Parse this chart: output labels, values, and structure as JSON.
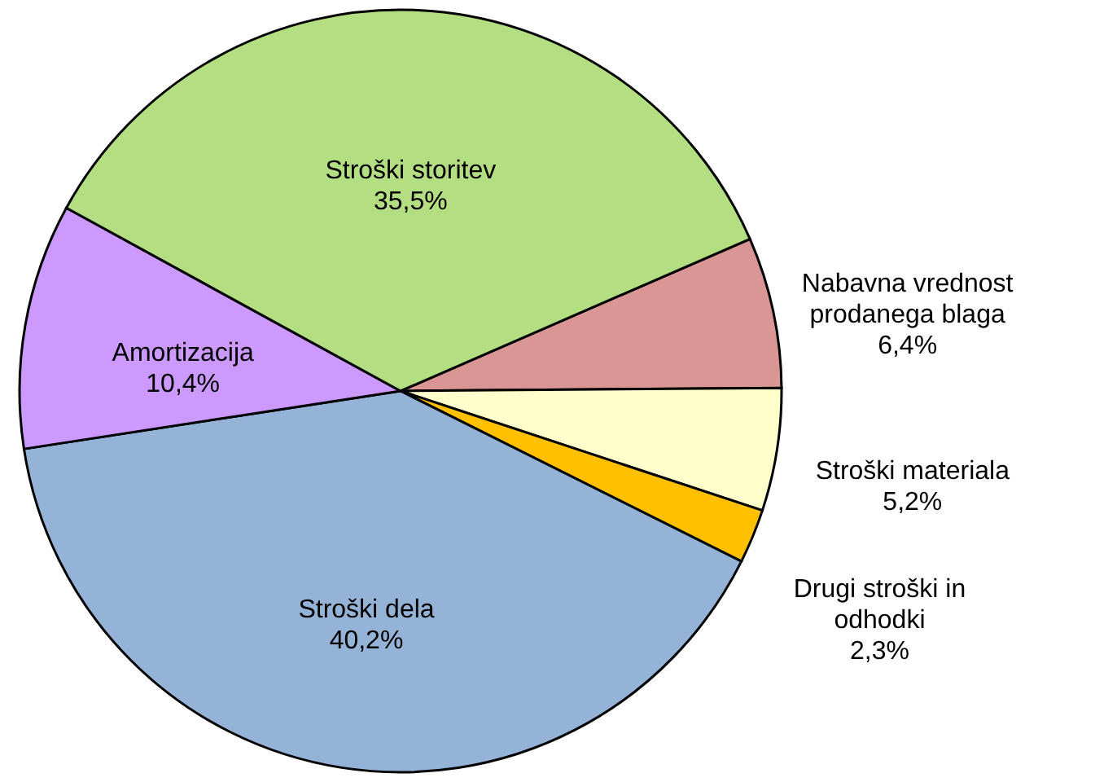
{
  "chart_data": {
    "type": "pie",
    "categories": [
      "Nabavna vrednost prodanega blaga",
      "Stroški materiala",
      "Drugi stroški in odhodki",
      "Stroški dela",
      "Amortizacija",
      "Stroški storitev"
    ],
    "values": [
      6.4,
      5.2,
      2.3,
      40.2,
      10.4,
      35.5
    ],
    "value_labels": [
      "6,4%",
      "5,2%",
      "2,3%",
      "40,2%",
      "10,4%",
      "35,5%"
    ],
    "colors": [
      "#d99694",
      "#ffffcc",
      "#ffc000",
      "#95b3d7",
      "#cc99ff",
      "#b3de81"
    ]
  }
}
